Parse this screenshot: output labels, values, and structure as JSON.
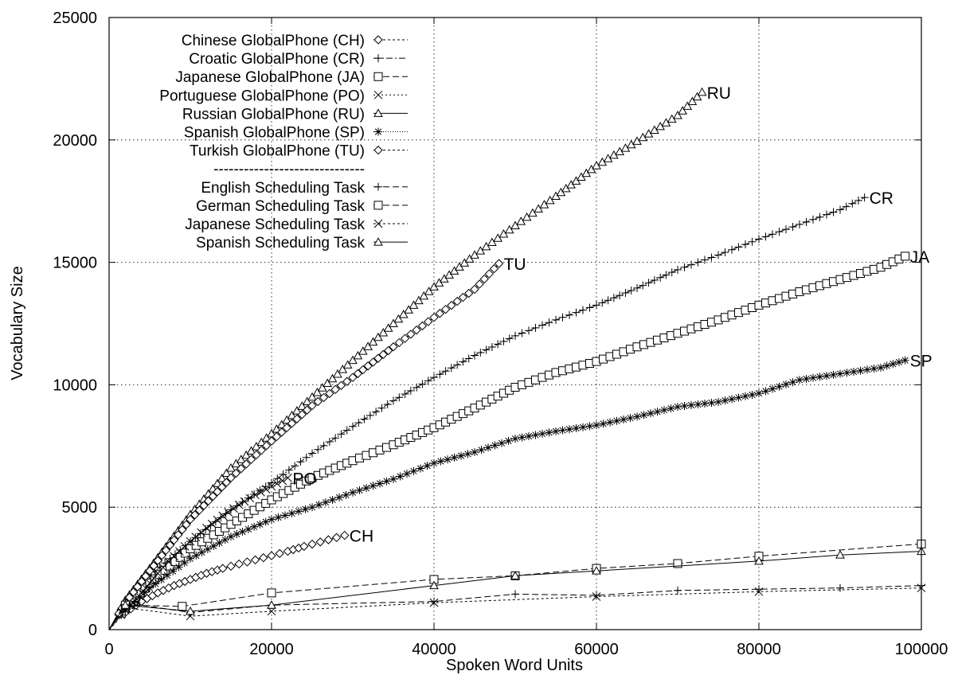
{
  "chart_data": {
    "type": "line",
    "xlabel": "Spoken Word Units",
    "ylabel": "Vocabulary Size",
    "xlim": [
      0,
      100000
    ],
    "ylim": [
      0,
      25000
    ],
    "xticks": [
      0,
      20000,
      40000,
      60000,
      80000,
      100000
    ],
    "yticks": [
      0,
      5000,
      10000,
      15000,
      20000,
      25000
    ],
    "xtick_labels": [
      "0",
      "20000",
      "40000",
      "60000",
      "80000",
      "100000"
    ],
    "ytick_labels": [
      "0",
      "5000",
      "10000",
      "15000",
      "20000",
      "25000"
    ],
    "grid": true,
    "legend_position": "top-left",
    "legend_separator": "------------------------------",
    "series": [
      {
        "name": "Chinese GlobalPhone (CH)",
        "end_label": "CH",
        "marker": "diamond",
        "dash": "3 3",
        "dense": true,
        "points": [
          [
            0,
            0
          ],
          [
            2000,
            700
          ],
          [
            4000,
            1150
          ],
          [
            6000,
            1500
          ],
          [
            8000,
            1800
          ],
          [
            10000,
            2050
          ],
          [
            12000,
            2300
          ],
          [
            14000,
            2500
          ],
          [
            16000,
            2680
          ],
          [
            18000,
            2850
          ],
          [
            20000,
            3020
          ],
          [
            22000,
            3200
          ],
          [
            24000,
            3400
          ],
          [
            26000,
            3580
          ],
          [
            28000,
            3760
          ],
          [
            29000,
            3850
          ]
        ]
      },
      {
        "name": "Croatic GlobalPhone (CR)",
        "end_label": "CR",
        "marker": "plus",
        "dash": "8 3 2 3",
        "dense": true,
        "points": [
          [
            0,
            0
          ],
          [
            2000,
            1000
          ],
          [
            5000,
            2200
          ],
          [
            10000,
            3600
          ],
          [
            15000,
            4900
          ],
          [
            20000,
            6000
          ],
          [
            25000,
            7200
          ],
          [
            30000,
            8300
          ],
          [
            35000,
            9350
          ],
          [
            40000,
            10300
          ],
          [
            45000,
            11200
          ],
          [
            50000,
            12000
          ],
          [
            55000,
            12650
          ],
          [
            60000,
            13250
          ],
          [
            65000,
            13950
          ],
          [
            70000,
            14700
          ],
          [
            75000,
            15300
          ],
          [
            80000,
            15950
          ],
          [
            85000,
            16550
          ],
          [
            90000,
            17150
          ],
          [
            93000,
            17650
          ]
        ]
      },
      {
        "name": "Japanese GlobalPhone (JA)",
        "end_label": "JA",
        "marker": "square",
        "dash": "8 4",
        "dense": true,
        "points": [
          [
            0,
            0
          ],
          [
            2000,
            900
          ],
          [
            5000,
            1900
          ],
          [
            10000,
            3300
          ],
          [
            15000,
            4300
          ],
          [
            20000,
            5300
          ],
          [
            25000,
            6200
          ],
          [
            30000,
            6900
          ],
          [
            35000,
            7550
          ],
          [
            40000,
            8250
          ],
          [
            45000,
            9050
          ],
          [
            50000,
            9900
          ],
          [
            55000,
            10500
          ],
          [
            60000,
            10950
          ],
          [
            65000,
            11550
          ],
          [
            70000,
            12100
          ],
          [
            75000,
            12650
          ],
          [
            80000,
            13250
          ],
          [
            85000,
            13800
          ],
          [
            90000,
            14300
          ],
          [
            95000,
            14800
          ],
          [
            98000,
            15250
          ]
        ]
      },
      {
        "name": "Portuguese GlobalPhone (PO)",
        "end_label": "PO",
        "marker": "cross",
        "dash": "2 3",
        "dense": true,
        "points": [
          [
            0,
            0
          ],
          [
            2000,
            800
          ],
          [
            4000,
            1500
          ],
          [
            6000,
            2300
          ],
          [
            8000,
            3000
          ],
          [
            10000,
            3600
          ],
          [
            12000,
            4150
          ],
          [
            14000,
            4650
          ],
          [
            16000,
            5100
          ],
          [
            18000,
            5500
          ],
          [
            20000,
            5850
          ],
          [
            22000,
            6200
          ]
        ]
      },
      {
        "name": "Russian GlobalPhone (RU)",
        "end_label": "RU",
        "marker": "triangle",
        "dash": "",
        "dense": true,
        "points": [
          [
            0,
            0
          ],
          [
            2000,
            1200
          ],
          [
            5000,
            2500
          ],
          [
            10000,
            4700
          ],
          [
            15000,
            6600
          ],
          [
            20000,
            8000
          ],
          [
            25000,
            9500
          ],
          [
            30000,
            11000
          ],
          [
            35000,
            12500
          ],
          [
            40000,
            14000
          ],
          [
            45000,
            15300
          ],
          [
            50000,
            16500
          ],
          [
            55000,
            17700
          ],
          [
            60000,
            18950
          ],
          [
            65000,
            19950
          ],
          [
            70000,
            21000
          ],
          [
            73000,
            21950
          ]
        ]
      },
      {
        "name": "Spanish GlobalPhone (SP)",
        "end_label": "SP",
        "marker": "star",
        "dash": "1 2",
        "dense": true,
        "points": [
          [
            0,
            0
          ],
          [
            2000,
            800
          ],
          [
            5000,
            1700
          ],
          [
            10000,
            2900
          ],
          [
            15000,
            3800
          ],
          [
            20000,
            4500
          ],
          [
            25000,
            5000
          ],
          [
            30000,
            5600
          ],
          [
            35000,
            6150
          ],
          [
            40000,
            6800
          ],
          [
            45000,
            7250
          ],
          [
            50000,
            7800
          ],
          [
            55000,
            8100
          ],
          [
            60000,
            8350
          ],
          [
            65000,
            8700
          ],
          [
            70000,
            9100
          ],
          [
            75000,
            9300
          ],
          [
            80000,
            9650
          ],
          [
            85000,
            10200
          ],
          [
            90000,
            10450
          ],
          [
            95000,
            10700
          ],
          [
            98000,
            11000
          ]
        ]
      },
      {
        "name": "Turkish GlobalPhone (TU)",
        "end_label": "TU",
        "marker": "diamond",
        "dash": "3 3",
        "dense": true,
        "points": [
          [
            0,
            0
          ],
          [
            2000,
            1100
          ],
          [
            5000,
            2400
          ],
          [
            10000,
            4500
          ],
          [
            15000,
            6200
          ],
          [
            20000,
            7700
          ],
          [
            25000,
            9150
          ],
          [
            30000,
            10300
          ],
          [
            35000,
            11550
          ],
          [
            40000,
            12750
          ],
          [
            45000,
            13900
          ],
          [
            48000,
            14950
          ]
        ]
      },
      {
        "name": "English Scheduling Task",
        "end_label": "",
        "marker": "plus",
        "dash": "8 4",
        "dense": false,
        "points": [
          [
            0,
            0
          ],
          [
            2000,
            1100
          ],
          [
            10000,
            700
          ],
          [
            20000,
            1000
          ],
          [
            40000,
            1150
          ],
          [
            50000,
            1450
          ],
          [
            60000,
            1400
          ],
          [
            70000,
            1600
          ],
          [
            80000,
            1650
          ],
          [
            90000,
            1700
          ],
          [
            100000,
            1800
          ]
        ]
      },
      {
        "name": "German Scheduling Task",
        "end_label": "",
        "marker": "square",
        "dash": "8 4",
        "dense": false,
        "points": [
          [
            0,
            0
          ],
          [
            2000,
            1000
          ],
          [
            9000,
            950
          ],
          [
            20000,
            1500
          ],
          [
            40000,
            2050
          ],
          [
            50000,
            2200
          ],
          [
            60000,
            2500
          ],
          [
            70000,
            2700
          ],
          [
            80000,
            3000
          ],
          [
            100000,
            3500
          ]
        ]
      },
      {
        "name": "Japanese Scheduling Task",
        "end_label": "",
        "marker": "cross",
        "dash": "3 3",
        "dense": false,
        "points": [
          [
            0,
            0
          ],
          [
            2000,
            900
          ],
          [
            10000,
            550
          ],
          [
            20000,
            750
          ],
          [
            40000,
            1100
          ],
          [
            60000,
            1350
          ],
          [
            80000,
            1550
          ],
          [
            100000,
            1700
          ]
        ]
      },
      {
        "name": "Spanish Scheduling Task",
        "end_label": "",
        "marker": "triangle",
        "dash": "",
        "dense": false,
        "points": [
          [
            0,
            0
          ],
          [
            2000,
            1000
          ],
          [
            10000,
            750
          ],
          [
            20000,
            1000
          ],
          [
            40000,
            1800
          ],
          [
            50000,
            2200
          ],
          [
            60000,
            2400
          ],
          [
            80000,
            2800
          ],
          [
            90000,
            3050
          ],
          [
            100000,
            3200
          ]
        ]
      }
    ]
  }
}
